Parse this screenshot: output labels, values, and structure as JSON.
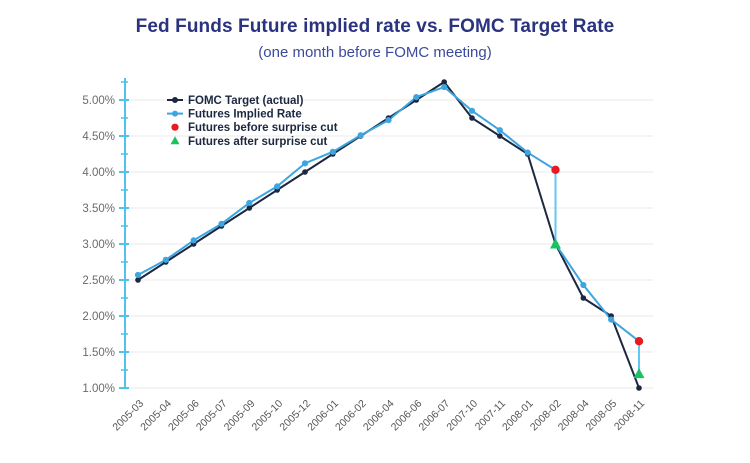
{
  "header": {
    "title": "Fed Funds Future implied rate vs. FOMC Target Rate",
    "subtitle": "(one month before FOMC meeting)"
  },
  "colors": {
    "title": "#2b3380",
    "subtitle": "#3c4a9c",
    "axis": "#4fc3ea",
    "gridline": "#e8e8e8",
    "y_label": "#6b6b6b",
    "x_label": "#555555",
    "legend_text": "#1b2840",
    "target_line": "#1b2840",
    "futures_line": "#3da5e0",
    "surprise_connector": "#5fc9f2",
    "surprise_before": "#e8191f",
    "surprise_after": "#17c45f"
  },
  "chart_data": {
    "type": "line",
    "title": "Fed Funds Future implied rate vs. FOMC Target Rate",
    "subtitle": "(one month before FOMC meeting)",
    "grid": true,
    "legend_position": "top-left",
    "x_label": "",
    "y_label": "",
    "y_min": 1.0,
    "y_max": 5.25,
    "y_tick_step": 0.5,
    "y_tick_labels": [
      "5.00%",
      "4.50%",
      "4.00%",
      "3.50%",
      "3.00%",
      "2.50%",
      "2.00%",
      "1.50%",
      "1.00%"
    ],
    "categories": [
      "2005-03",
      "2005-04",
      "2005-06",
      "2005-07",
      "2005-09",
      "2005-10",
      "2005-12",
      "2006-01",
      "2006-02",
      "2006-04",
      "2006-06",
      "2006-07",
      "2007-10",
      "2007-11",
      "2008-01",
      "2008-02",
      "2008-04",
      "2008-05",
      "2008-11"
    ],
    "series": [
      {
        "name": "FOMC Target (actual)",
        "color": "#1b2840",
        "marker": "circle",
        "values": [
          2.5,
          2.75,
          3.0,
          3.25,
          3.5,
          3.75,
          4.0,
          4.25,
          4.5,
          4.75,
          5.0,
          5.25,
          4.75,
          4.5,
          4.25,
          3.0,
          2.25,
          2.0,
          1.0
        ]
      },
      {
        "name": "Futures Implied Rate",
        "color": "#3da5e0",
        "marker": "circle",
        "values": [
          2.57,
          2.78,
          3.05,
          3.28,
          3.57,
          3.8,
          4.12,
          4.28,
          4.51,
          4.72,
          5.04,
          5.18,
          4.85,
          4.58,
          4.27,
          4.03,
          2.43,
          1.95,
          1.65
        ]
      }
    ],
    "surprise_cuts": [
      {
        "category": "2008-02",
        "index": 15,
        "before": 4.03,
        "after": 3.0
      },
      {
        "category": "2008-11",
        "index": 18,
        "before": 1.65,
        "after": 1.2
      }
    ],
    "legend": [
      {
        "label": "FOMC Target (actual)",
        "marker": "line-dot",
        "color": "#1b2840"
      },
      {
        "label": "Futures Implied Rate",
        "marker": "line-dot",
        "color": "#3da5e0"
      },
      {
        "label": "Futures before surprise cut",
        "marker": "dot",
        "color": "#e8191f"
      },
      {
        "label": "Futures after surprise cut",
        "marker": "triangle",
        "color": "#17c45f"
      }
    ]
  }
}
